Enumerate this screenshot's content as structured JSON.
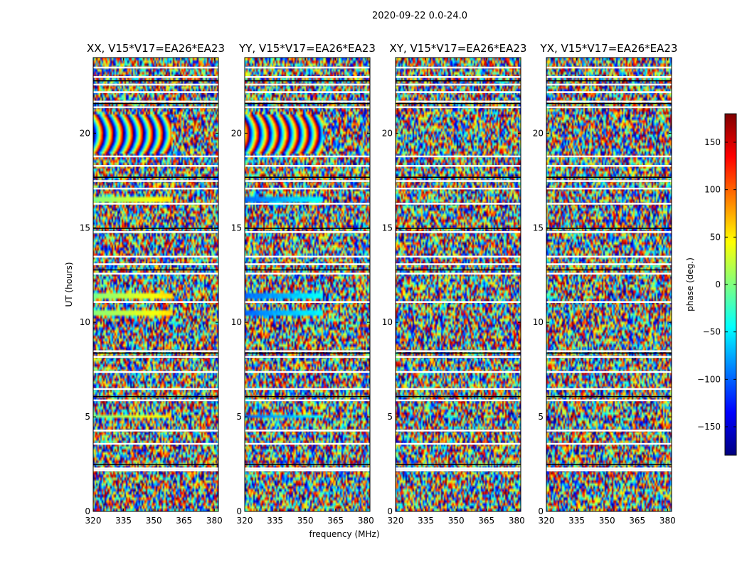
{
  "chart_data": {
    "type": "heatmap",
    "title": "2020-09-22 0.0-24.0",
    "xlabel": "frequency (MHz)",
    "ylabel": "UT (hours)",
    "xlim": [
      320,
      382
    ],
    "ylim": [
      0,
      24
    ],
    "x_ticks": [
      "320",
      "335",
      "350",
      "365",
      "380"
    ],
    "y_ticks": [
      "0",
      "5",
      "10",
      "15",
      "20"
    ],
    "colormap": "jet",
    "colorbar": {
      "label": "phase (deg.)",
      "range": [
        -180,
        180
      ],
      "ticks": [
        "−150",
        "−100",
        "−50",
        "0",
        "50",
        "100",
        "150"
      ],
      "tick_values": [
        -150,
        -100,
        -50,
        0,
        50,
        100,
        150
      ],
      "colors": [
        "#00007f",
        "#0000ff",
        "#007fff",
        "#00ffff",
        "#7fff7f",
        "#ffff00",
        "#ff7f00",
        "#ff0000",
        "#7f0000"
      ]
    },
    "panels": [
      {
        "title": "XX, V15*V17=EA26*EA23",
        "fringes": [
          [
            18.9,
            21.0
          ],
          [
            16.4,
            16.7
          ],
          [
            11.3,
            11.6
          ],
          [
            10.3,
            10.6
          ],
          [
            4.9,
            5.1
          ]
        ],
        "fringe_phase": 0
      },
      {
        "title": "YY, V15*V17=EA26*EA23",
        "fringes": [
          [
            18.9,
            21.0
          ],
          [
            16.4,
            16.7
          ],
          [
            11.3,
            11.6
          ],
          [
            10.3,
            10.6
          ],
          [
            4.9,
            5.1
          ]
        ],
        "fringe_phase": -140
      },
      {
        "title": "XY, V15*V17=EA26*EA23",
        "fringes": [],
        "fringe_phase": 0
      },
      {
        "title": "YX, V15*V17=EA26*EA23",
        "fringes": [],
        "fringe_phase": 0
      }
    ],
    "flagged_ut_hours": [
      2.1,
      2.2,
      3.5,
      4.2,
      5.8,
      6.4,
      7.3,
      8.1,
      8.4,
      11.0,
      12.5,
      13.0,
      13.4,
      14.7,
      16.2,
      17.0,
      17.4,
      18.2,
      18.7,
      21.3,
      21.6,
      22.1,
      22.5,
      22.9,
      23.4
    ]
  }
}
